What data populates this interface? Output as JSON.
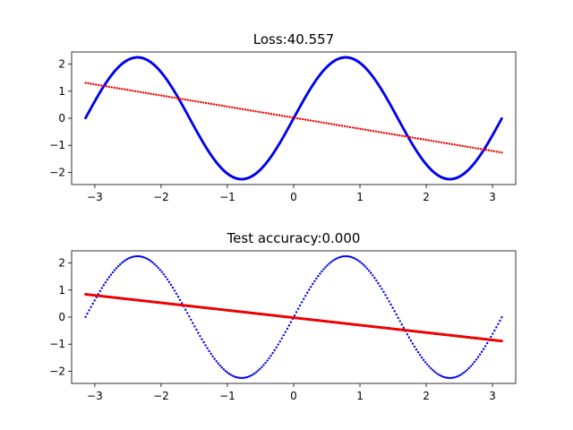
{
  "chart_data": [
    {
      "type": "scatter",
      "title": "Loss:40.557",
      "xlim": [
        -3.35,
        3.35
      ],
      "ylim": [
        -2.45,
        2.45
      ],
      "xticks": [
        -3,
        -2,
        -1,
        0,
        1,
        2,
        3
      ],
      "yticks": [
        -2,
        -1,
        0,
        1,
        2
      ],
      "xticklabels": [
        "−3",
        "−2",
        "−1",
        "0",
        "1",
        "2",
        "3"
      ],
      "yticklabels": [
        "−2",
        "−1",
        "0",
        "1",
        "2"
      ],
      "series": [
        {
          "color": "#0000ee",
          "kind": "sine",
          "amplitude": 2.25,
          "frequency": 2.0,
          "phase": 0.0,
          "x_range": [
            -3.14,
            3.14
          ],
          "density": "dense"
        },
        {
          "color": "#ee0000",
          "kind": "line",
          "slope": -0.41,
          "intercept": 0.02,
          "x_range": [
            -3.14,
            3.14
          ],
          "density": "medium"
        }
      ]
    },
    {
      "type": "scatter",
      "title": "Test accuracy:0.000",
      "xlim": [
        -3.35,
        3.35
      ],
      "ylim": [
        -2.45,
        2.45
      ],
      "xticks": [
        -3,
        -2,
        -1,
        0,
        1,
        2,
        3
      ],
      "yticks": [
        -2,
        -1,
        0,
        1,
        2
      ],
      "xticklabels": [
        "−3",
        "−2",
        "−1",
        "0",
        "1",
        "2",
        "3"
      ],
      "yticklabels": [
        "−2",
        "−1",
        "0",
        "1",
        "2"
      ],
      "series": [
        {
          "color": "#0000ee",
          "kind": "sine",
          "amplitude": 2.25,
          "frequency": 2.0,
          "phase": 0.0,
          "x_range": [
            -3.14,
            3.14
          ],
          "density": "sparse"
        },
        {
          "color": "#ee0000",
          "kind": "line",
          "slope": -0.275,
          "intercept": -0.02,
          "x_range": [
            -3.14,
            3.14
          ],
          "density": "dense"
        }
      ]
    }
  ]
}
